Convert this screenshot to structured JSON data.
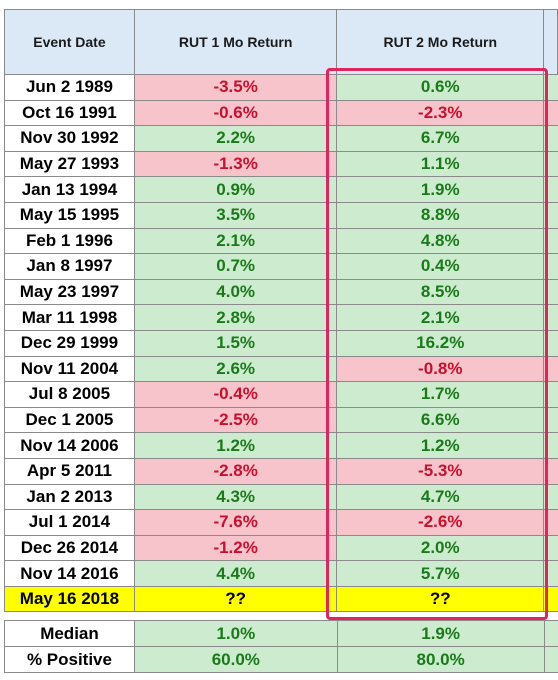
{
  "headers": [
    "Event Date",
    "RUT 1 Mo Return",
    "RUT 2 Mo Return"
  ],
  "rows": [
    {
      "date": "Jun 2 1989",
      "r1": "-3.5%",
      "r2": "0.6%"
    },
    {
      "date": "Oct 16 1991",
      "r1": "-0.6%",
      "r2": "-2.3%"
    },
    {
      "date": "Nov 30 1992",
      "r1": "2.2%",
      "r2": "6.7%"
    },
    {
      "date": "May 27 1993",
      "r1": "-1.3%",
      "r2": "1.1%"
    },
    {
      "date": "Jan 13 1994",
      "r1": "0.9%",
      "r2": "1.9%"
    },
    {
      "date": "May 15 1995",
      "r1": "3.5%",
      "r2": "8.8%"
    },
    {
      "date": "Feb 1 1996",
      "r1": "2.1%",
      "r2": "4.8%"
    },
    {
      "date": "Jan 8 1997",
      "r1": "0.7%",
      "r2": "0.4%"
    },
    {
      "date": "May 23 1997",
      "r1": "4.0%",
      "r2": "8.5%"
    },
    {
      "date": "Mar 11 1998",
      "r1": "2.8%",
      "r2": "2.1%"
    },
    {
      "date": "Dec 29 1999",
      "r1": "1.5%",
      "r2": "16.2%"
    },
    {
      "date": "Nov 11 2004",
      "r1": "2.6%",
      "r2": "-0.8%"
    },
    {
      "date": "Jul 8 2005",
      "r1": "-0.4%",
      "r2": "1.7%"
    },
    {
      "date": "Dec 1 2005",
      "r1": "-2.5%",
      "r2": "6.6%"
    },
    {
      "date": "Nov 14 2006",
      "r1": "1.2%",
      "r2": "1.2%"
    },
    {
      "date": "Apr 5 2011",
      "r1": "-2.8%",
      "r2": "-5.3%"
    },
    {
      "date": "Jan 2 2013",
      "r1": "4.3%",
      "r2": "4.7%"
    },
    {
      "date": "Jul 1 2014",
      "r1": "-7.6%",
      "r2": "-2.6%"
    },
    {
      "date": "Dec 26 2014",
      "r1": "-1.2%",
      "r2": "2.0%"
    },
    {
      "date": "Nov 14 2016",
      "r1": "4.4%",
      "r2": "5.7%"
    }
  ],
  "highlight_row": {
    "date": "May 16 2018",
    "r1": "??",
    "r2": "??"
  },
  "summary": [
    {
      "label": "Median",
      "r1": "1.0%",
      "r2": "1.9%"
    },
    {
      "label": "% Positive",
      "r1": "60.0%",
      "r2": "80.0%"
    }
  ],
  "colors": {
    "positive_bg": "#cdeccf",
    "positive_text": "#1a7a1a",
    "negative_bg": "#f7c4cc",
    "negative_text": "#c8102e",
    "header_bg": "#dbe9f7",
    "highlight_bg": "#ffff00",
    "frame": "#e0245e"
  }
}
